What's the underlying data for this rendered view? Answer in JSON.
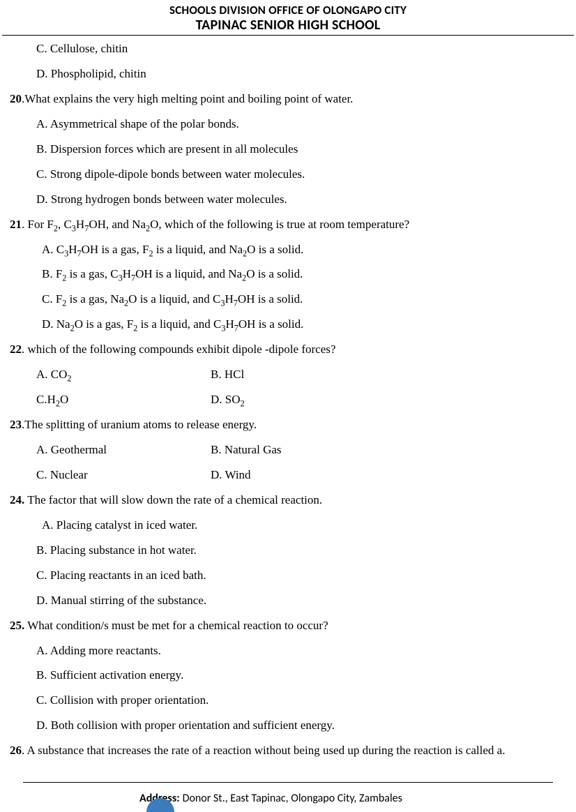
{
  "header": {
    "line1": "SCHOOLS DIVISION OFFICE OF OLONGAPO CITY",
    "line2": "TAPINAC SENIOR HIGH SCHOOL"
  },
  "q19": {
    "c": "C. Cellulose, chitin",
    "d": "D. Phospholipid, chitin"
  },
  "q20": {
    "num": "20",
    "stem": ".What explains the very high melting point and boiling point of water.",
    "a": "A. Asymmetrical shape of the polar bonds.",
    "b": "B. Dispersion forces which are present in all molecules",
    "c": "C.  Strong dipole-dipole bonds between water molecules.",
    "d": "D. Strong hydrogen bonds between water molecules."
  },
  "q21": {
    "num": " 21",
    "stem_pre": ". For F",
    "stem_mid1": ", C",
    "stem_mid2": "H",
    "stem_mid3": "OH, and Na",
    "stem_end": "O, which of the following is true at room temperature?",
    "a_pre": "A. C",
    "a_2": "H",
    "a_3": "OH is a gas, F",
    "a_4": " is a liquid, and Na",
    "a_5": "O is a solid.",
    "b_pre": "B. F",
    "b_2": " is a gas, C",
    "b_3": "H",
    "b_4": "OH is a liquid, and Na",
    "b_5": "O is a solid.",
    "c_pre": "C. F",
    "c_2": " is a gas, Na",
    "c_3": "O is a liquid, and C",
    "c_4": "H",
    "c_5": "OH is a solid.",
    "d_pre": "D. Na",
    "d_2": "O is a gas, F",
    "d_3": " is a liquid, and C",
    "d_4": "H",
    "d_5": "OH is a solid."
  },
  "q22": {
    "num": "22",
    "stem": ". which of the following compounds exhibit dipole -dipole forces?",
    "a_pre": "A. CO",
    "b": "B. HCl",
    "c_pre": "C.H",
    "c_post": "O",
    "d_pre": "D. SO"
  },
  "q23": {
    "num": "23",
    "stem": ".The splitting of uranium atoms to release energy.",
    "a": "A. Geothermal",
    "b": "B. Natural Gas",
    "c": "C. Nuclear",
    "d": "D. Wind"
  },
  "q24": {
    "num": "24.",
    "stem": " The factor that will slow down the rate of a chemical reaction.",
    "a": "A. Placing catalyst in iced water.",
    "b": "B. Placing substance in hot water.",
    "c": "C. Placing reactants in an iced bath.",
    "d": "D. Manual stirring of the substance."
  },
  "q25": {
    "num": "25.",
    "stem": "  What condition/s must be met for a chemical reaction to occur?",
    "a": "A. Adding more reactants.",
    "b": "B. Sufficient activation energy.",
    "c": "C. Collision with proper orientation.",
    "d": "D. Both collision with proper orientation and sufficient energy."
  },
  "q26": {
    "num": "26",
    "stem": ". A substance that increases the rate of a reaction without being used up during the reaction is called a."
  },
  "footer": {
    "addr_label": "Address:",
    "addr_text": " Donor St., East Tapinac, Olongapo City, Zambales"
  },
  "sub": {
    "two": "2",
    "three": "3",
    "seven": "7"
  }
}
